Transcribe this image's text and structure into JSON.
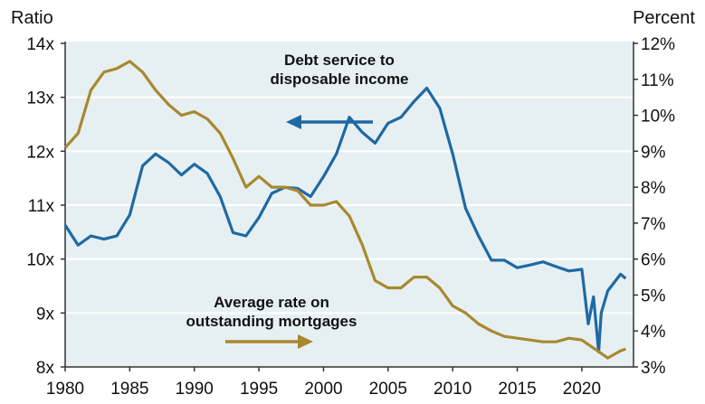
{
  "chart_data": {
    "type": "line",
    "title": "",
    "y_left_label": "Ratio",
    "y_right_label": "Percent",
    "xlim": [
      1980,
      2024
    ],
    "ylim_left": [
      8,
      14
    ],
    "ylim_right": [
      3,
      12
    ],
    "x_ticks": [
      "1980",
      "1985",
      "1990",
      "1995",
      "2000",
      "2005",
      "2010",
      "2015",
      "2020"
    ],
    "x_tick_values": [
      1980,
      1985,
      1990,
      1995,
      2000,
      2005,
      2010,
      2015,
      2020
    ],
    "y_left_ticks": [
      "8x",
      "9x",
      "10x",
      "11x",
      "12x",
      "13x",
      "14x"
    ],
    "y_left_tick_values": [
      8,
      9,
      10,
      11,
      12,
      13,
      14
    ],
    "y_right_ticks": [
      "3%",
      "4%",
      "5%",
      "6%",
      "7%",
      "8%",
      "9%",
      "10%",
      "11%",
      "12%"
    ],
    "y_right_tick_values": [
      3,
      4,
      5,
      6,
      7,
      8,
      9,
      10,
      11,
      12
    ],
    "grid": true,
    "series": [
      {
        "name": "Debt service to disposable income",
        "axis": "left",
        "color": "#1f69a3",
        "annotation_line1": "Debt service to",
        "annotation_line2": "disposable income",
        "x": [
          1980,
          1981,
          1982,
          1983,
          1984,
          1985,
          1986,
          1987,
          1988,
          1989,
          1990,
          1991,
          1992,
          1993,
          1994,
          1995,
          1996,
          1997,
          1998,
          1999,
          2000,
          2001,
          2002,
          2003,
          2004,
          2005,
          2006,
          2007,
          2008,
          2009,
          2010,
          2011,
          2012,
          2013,
          2014,
          2015,
          2016,
          2017,
          2018,
          2019,
          2020,
          2020.5,
          2020.9,
          2021.3,
          2021.5,
          2022,
          2023,
          2023.4
        ],
        "values": [
          10.63,
          10.26,
          10.43,
          10.37,
          10.43,
          10.82,
          11.73,
          11.95,
          11.79,
          11.56,
          11.76,
          11.59,
          11.16,
          10.49,
          10.43,
          10.77,
          11.22,
          11.33,
          11.31,
          11.16,
          11.53,
          11.95,
          12.63,
          12.35,
          12.15,
          12.52,
          12.63,
          12.92,
          13.17,
          12.8,
          11.95,
          10.94,
          10.43,
          9.98,
          9.98,
          9.84,
          9.89,
          9.95,
          9.86,
          9.78,
          9.81,
          8.8,
          9.3,
          8.28,
          9.0,
          9.41,
          9.72,
          9.64
        ]
      },
      {
        "name": "Average rate on outstanding mortgages",
        "axis": "right",
        "color": "#a8892f",
        "annotation_line1": "Average rate on",
        "annotation_line2": "outstanding mortgages",
        "x": [
          1980,
          1981,
          1982,
          1983,
          1984,
          1985,
          1986,
          1987,
          1988,
          1989,
          1990,
          1991,
          1992,
          1993,
          1994,
          1995,
          1996,
          1997,
          1998,
          1999,
          2000,
          2001,
          2002,
          2003,
          2004,
          2005,
          2006,
          2007,
          2008,
          2009,
          2010,
          2011,
          2012,
          2013,
          2014,
          2015,
          2016,
          2017,
          2018,
          2019,
          2020,
          2021,
          2022,
          2023,
          2023.4
        ],
        "values": [
          9.1,
          9.5,
          10.7,
          11.2,
          11.3,
          11.5,
          11.2,
          10.7,
          10.3,
          10.0,
          10.1,
          9.9,
          9.5,
          8.8,
          8.0,
          8.3,
          8.0,
          8.0,
          7.9,
          7.5,
          7.5,
          7.6,
          7.2,
          6.4,
          5.4,
          5.2,
          5.2,
          5.5,
          5.5,
          5.2,
          4.7,
          4.5,
          4.2,
          4.0,
          3.85,
          3.8,
          3.75,
          3.7,
          3.7,
          3.8,
          3.75,
          3.5,
          3.25,
          3.45,
          3.5
        ]
      }
    ]
  }
}
